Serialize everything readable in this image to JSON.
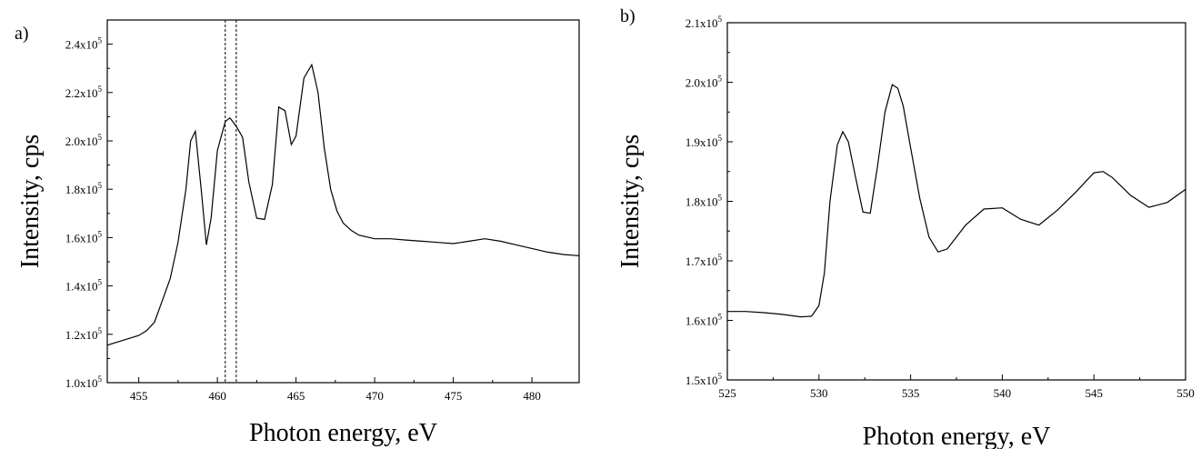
{
  "chart_data": [
    {
      "type": "line",
      "panel_label": "a)",
      "xlabel": "Photon energy, eV",
      "ylabel": "Intensity, cps",
      "xlim": [
        453,
        483
      ],
      "ylim": [
        100000,
        250000
      ],
      "x_ticks": [
        455,
        460,
        465,
        470,
        475,
        480
      ],
      "y_ticks": [
        {
          "value": 100000,
          "mantissa": "1.0",
          "exponent": "5"
        },
        {
          "value": 120000,
          "mantissa": "1.2",
          "exponent": "5"
        },
        {
          "value": 140000,
          "mantissa": "1.4",
          "exponent": "5"
        },
        {
          "value": 160000,
          "mantissa": "1.6",
          "exponent": "5"
        },
        {
          "value": 180000,
          "mantissa": "1.8",
          "exponent": "5"
        },
        {
          "value": 200000,
          "mantissa": "2.0",
          "exponent": "5"
        },
        {
          "value": 220000,
          "mantissa": "2.2",
          "exponent": "5"
        },
        {
          "value": 240000,
          "mantissa": "2.4",
          "exponent": "5"
        }
      ],
      "tick_label_prefix": "x10",
      "vertical_markers": [
        460.5,
        461.2
      ],
      "grid": false,
      "series": [
        {
          "x": [
            453,
            454,
            455,
            455.5,
            456,
            456.5,
            457,
            457.5,
            458,
            458.3,
            458.6,
            459,
            459.3,
            459.6,
            460,
            460.5,
            460.8,
            461.2,
            461.6,
            462,
            462.5,
            463,
            463.5,
            463.9,
            464.3,
            464.7,
            465,
            465.5,
            466,
            466.4,
            466.8,
            467.2,
            467.6,
            468,
            468.5,
            469,
            470,
            471,
            472,
            473,
            474,
            475,
            476,
            477,
            478,
            479,
            480,
            481,
            482,
            483
          ],
          "y": [
            115500,
            117500,
            119500,
            121500,
            125000,
            134000,
            143000,
            158000,
            180000,
            200000,
            204000,
            178000,
            157000,
            168000,
            196000,
            208000,
            209500,
            206000,
            201500,
            183000,
            168000,
            167500,
            182000,
            214000,
            212500,
            198500,
            202000,
            226000,
            231500,
            220000,
            197000,
            180000,
            171000,
            166000,
            163000,
            161000,
            159500,
            159500,
            159000,
            158500,
            158000,
            157500,
            158500,
            159500,
            158500,
            157000,
            155500,
            154000,
            153000,
            152500
          ]
        }
      ]
    },
    {
      "type": "line",
      "panel_label": "b)",
      "xlabel": "Photon energy, eV",
      "ylabel": "Intensity, cps",
      "xlim": [
        525,
        550
      ],
      "ylim": [
        150000,
        210000
      ],
      "x_ticks": [
        525,
        530,
        535,
        540,
        545,
        550
      ],
      "y_ticks": [
        {
          "value": 150000,
          "mantissa": "1.5",
          "exponent": "5"
        },
        {
          "value": 160000,
          "mantissa": "1.6",
          "exponent": "5"
        },
        {
          "value": 170000,
          "mantissa": "1.7",
          "exponent": "5"
        },
        {
          "value": 180000,
          "mantissa": "1.8",
          "exponent": "5"
        },
        {
          "value": 190000,
          "mantissa": "1.9",
          "exponent": "5"
        },
        {
          "value": 200000,
          "mantissa": "2.0",
          "exponent": "5"
        },
        {
          "value": 210000,
          "mantissa": "2.1",
          "exponent": "5"
        }
      ],
      "tick_label_prefix": "x10",
      "vertical_markers": [],
      "grid": false,
      "series": [
        {
          "x": [
            525,
            526,
            527,
            528,
            529,
            529.6,
            530,
            530.3,
            530.6,
            531,
            531.3,
            531.6,
            532,
            532.4,
            532.8,
            533.2,
            533.6,
            534,
            534.3,
            534.6,
            535,
            535.5,
            536,
            536.5,
            537,
            537.5,
            538,
            539,
            540,
            541,
            542,
            543,
            544,
            545,
            545.5,
            546,
            547,
            548,
            549,
            550
          ],
          "y": [
            161500,
            161500,
            161300,
            161000,
            160600,
            160700,
            162500,
            168000,
            180000,
            189500,
            191700,
            190000,
            184000,
            178200,
            178000,
            186000,
            195000,
            199600,
            199000,
            196000,
            189000,
            180500,
            174000,
            171500,
            172000,
            174000,
            176000,
            178700,
            178900,
            177000,
            176000,
            178500,
            181500,
            184800,
            185000,
            184000,
            181000,
            179000,
            179800,
            182000
          ]
        }
      ]
    }
  ]
}
